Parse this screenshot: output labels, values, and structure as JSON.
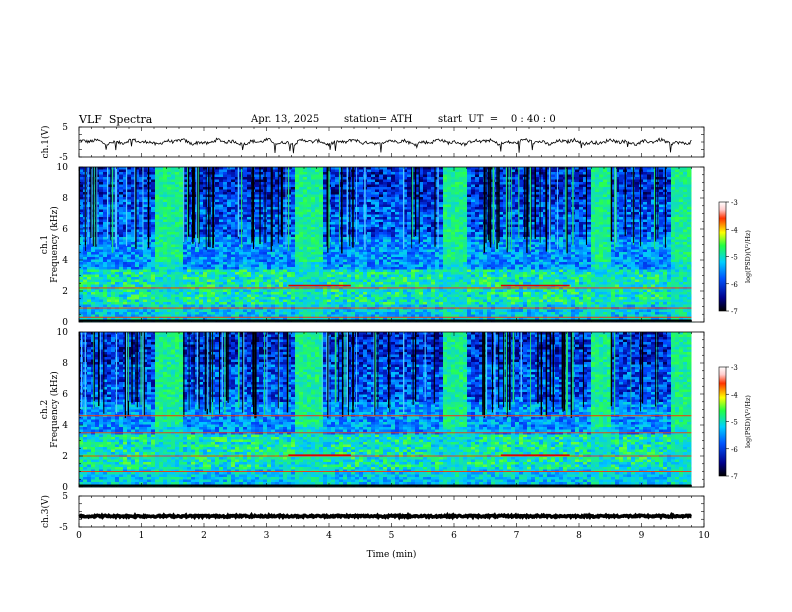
{
  "header": {
    "title": "VLF  Spectra",
    "date": "Apr. 13, 2025",
    "station": "station= ATH",
    "start": "start  UT  =    0 : 40 : 0"
  },
  "chart_data": [
    {
      "id": "ch1-waveform",
      "type": "line",
      "ylabel": "ch.1(V)",
      "yticks": [
        "5",
        "-5"
      ],
      "ylim": [
        -5,
        5
      ],
      "xlim": [
        0,
        10
      ],
      "baseline": 0,
      "signal_end": 9.8,
      "description_values": {
        "amplitude_range": [
          -1,
          1
        ]
      }
    },
    {
      "id": "ch1-spectrogram",
      "type": "heatmap",
      "ylabel": "ch.1\nFrequency (kHz)",
      "ylabel_top": "ch.1",
      "ylabel_bottom": "Frequency  (kHz)",
      "yticks": [
        "0",
        "2",
        "4",
        "6",
        "8",
        "10"
      ],
      "ylim": [
        0,
        10
      ],
      "xlim": [
        0,
        10
      ],
      "signal_end": 9.8,
      "colorbar": {
        "label": "log(PSD)(V²/Hz)",
        "ticks": [
          "-3",
          "-4",
          "-5",
          "-6",
          "-7"
        ],
        "range": [
          -7,
          -3
        ]
      },
      "bursts_min": [
        [
          1.2,
          1.6
        ],
        [
          3.4,
          3.85
        ],
        [
          5.8,
          6.2
        ],
        [
          8.15,
          8.5
        ],
        [
          9.45,
          9.8
        ]
      ],
      "red_lines_khz": [
        2.2,
        0.9,
        0.3
      ],
      "red_segments": [
        [
          3.35,
          4.35
        ],
        [
          6.75,
          7.85
        ]
      ]
    },
    {
      "id": "ch2-spectrogram",
      "type": "heatmap",
      "ylabel_top": "ch.2",
      "ylabel_bottom": "Frequency  (kHz)",
      "yticks": [
        "0",
        "2",
        "4",
        "6",
        "8",
        "10"
      ],
      "ylim": [
        0,
        10
      ],
      "xlim": [
        0,
        10
      ],
      "signal_end": 9.8,
      "colorbar": {
        "label": "log(PSD)(V²/Hz)",
        "ticks": [
          "-3",
          "-4",
          "-5",
          "-6",
          "-7"
        ],
        "range": [
          -7,
          -3
        ]
      },
      "bursts_min": [
        [
          1.2,
          1.6
        ],
        [
          3.4,
          3.85
        ],
        [
          5.8,
          6.2
        ],
        [
          8.15,
          8.5
        ],
        [
          9.45,
          9.8
        ]
      ],
      "red_lines_khz": [
        4.6,
        3.5,
        2.0,
        1.0
      ],
      "red_segments": [
        [
          3.35,
          4.35
        ],
        [
          6.75,
          7.85
        ]
      ]
    },
    {
      "id": "ch3-waveform",
      "type": "line",
      "ylabel": "ch.3(V)",
      "yticks": [
        "5",
        "-5"
      ],
      "ylim": [
        -5,
        5
      ],
      "xlim": [
        0,
        10
      ],
      "baseline": -1.5,
      "signal_end": 9.8
    }
  ],
  "xaxis": {
    "label": "Time  (min)",
    "ticks": [
      "0",
      "1",
      "2",
      "3",
      "4",
      "5",
      "6",
      "7",
      "8",
      "9",
      "10"
    ]
  },
  "colors": {
    "black": "#000000",
    "spectrogram_low": "#00008b",
    "spectrogram_high": "#ff0000"
  }
}
